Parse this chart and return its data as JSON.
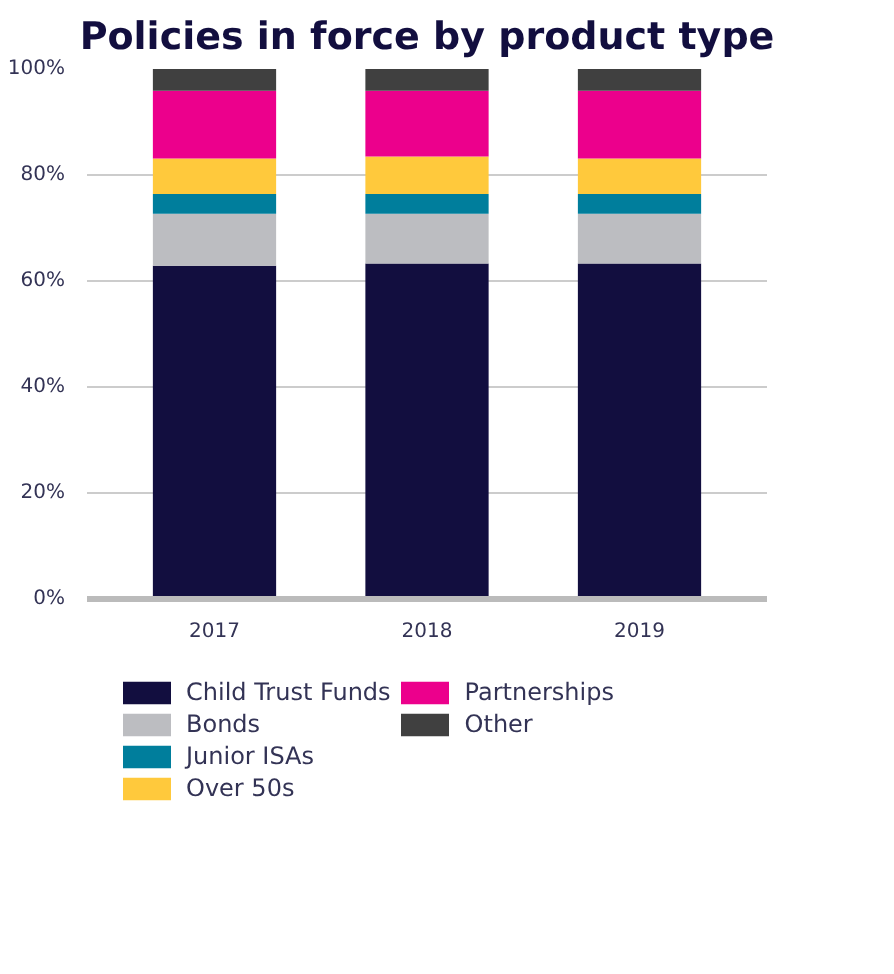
{
  "chart_data": {
    "type": "bar",
    "stacked": true,
    "title": "Policies in force by product type",
    "categories": [
      "2017",
      "2018",
      "2019"
    ],
    "series": [
      {
        "name": "Child Trust Funds",
        "color": "#120e3f",
        "values": [
          62.9,
          63.3,
          63.3
        ]
      },
      {
        "name": "Bonds",
        "color": "#bcbdc1",
        "values": [
          9.8,
          9.4,
          9.4
        ]
      },
      {
        "name": "Junior ISAs",
        "color": "#007e9c",
        "values": [
          3.7,
          3.7,
          3.7
        ]
      },
      {
        "name": "Over 50s",
        "color": "#ffc93c",
        "values": [
          6.7,
          7.1,
          6.7
        ]
      },
      {
        "name": "Partnerships",
        "color": "#ec008c",
        "values": [
          12.8,
          12.4,
          12.8
        ]
      },
      {
        "name": "Other",
        "color": "#404040",
        "values": [
          4.1,
          4.1,
          4.1
        ]
      }
    ],
    "ylim": [
      0,
      100
    ],
    "yticks": [
      {
        "value": 0,
        "label": "0%"
      },
      {
        "value": 20,
        "label": "20%"
      },
      {
        "value": 40,
        "label": "40%"
      },
      {
        "value": 60,
        "label": "60%"
      },
      {
        "value": 80,
        "label": "80%"
      },
      {
        "value": 100,
        "label": "100%"
      }
    ],
    "grid": "y",
    "legend": "bottom"
  }
}
